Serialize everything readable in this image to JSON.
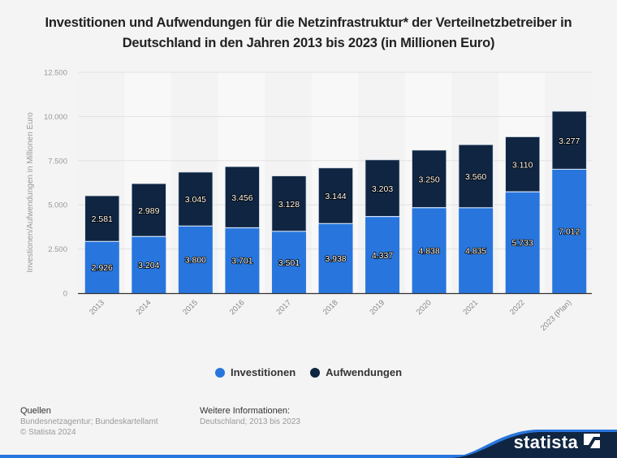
{
  "title_line1": "Investitionen und Aufwendungen für die Netzinfrastruktur* der Verteilnetzbetreiber in",
  "title_line2": "Deutschland in den Jahren 2013 bis 2023 (in Millionen Euro)",
  "chart_data": {
    "type": "bar",
    "stacked": true,
    "title": "Investitionen und Aufwendungen für die Netzinfrastruktur* der Verteilnetzbetreiber in Deutschland in den Jahren 2013 bis 2023 (in Millionen Euro)",
    "xlabel": "",
    "ylabel": "Investionen/Aufwendungen in Millionen Euro",
    "ylim": [
      0,
      12500
    ],
    "yticks": [
      0,
      2500,
      5000,
      7500,
      10000,
      12500
    ],
    "ytick_labels": [
      "0",
      "2.500",
      "5.000",
      "7.500",
      "10.000",
      "12.500"
    ],
    "grid": true,
    "legend_position": "bottom-center",
    "categories": [
      "2013",
      "2014",
      "2015",
      "2016",
      "2017",
      "2018",
      "2019",
      "2020",
      "2021",
      "2022",
      "2023 (Plan)"
    ],
    "series": [
      {
        "name": "Investitionen",
        "color": "#2876dd",
        "values": [
          2926,
          3204,
          3800,
          3701,
          3501,
          3938,
          4337,
          4838,
          4835,
          5733,
          7012
        ],
        "labels": [
          "2.926",
          "3.204",
          "3.800",
          "3.701",
          "3.501",
          "3.938",
          "4.337",
          "4.838",
          "4.835",
          "5.733",
          "7.012"
        ]
      },
      {
        "name": "Aufwendungen",
        "color": "#0f2541",
        "values": [
          2581,
          2989,
          3045,
          3456,
          3128,
          3144,
          3203,
          3250,
          3560,
          3110,
          3277
        ],
        "labels": [
          "2.581",
          "2.989",
          "3.045",
          "3.456",
          "3.128",
          "3.144",
          "3.203",
          "3.250",
          "3.560",
          "3.110",
          "3.277"
        ]
      }
    ]
  },
  "legend": [
    {
      "label": "Investitionen",
      "color": "#2876dd"
    },
    {
      "label": "Aufwendungen",
      "color": "#0f2541"
    }
  ],
  "footer": {
    "sources_heading": "Quellen",
    "sources_line1": "Bundesnetzagentur; Bundeskartellamt",
    "sources_line2": "© Statista 2024",
    "info_heading": "Weitere Informationen:",
    "info_line1": "Deutschland; 2013 bis 2023"
  },
  "brand": {
    "name": "statista",
    "icon": "statista-logo-icon"
  }
}
